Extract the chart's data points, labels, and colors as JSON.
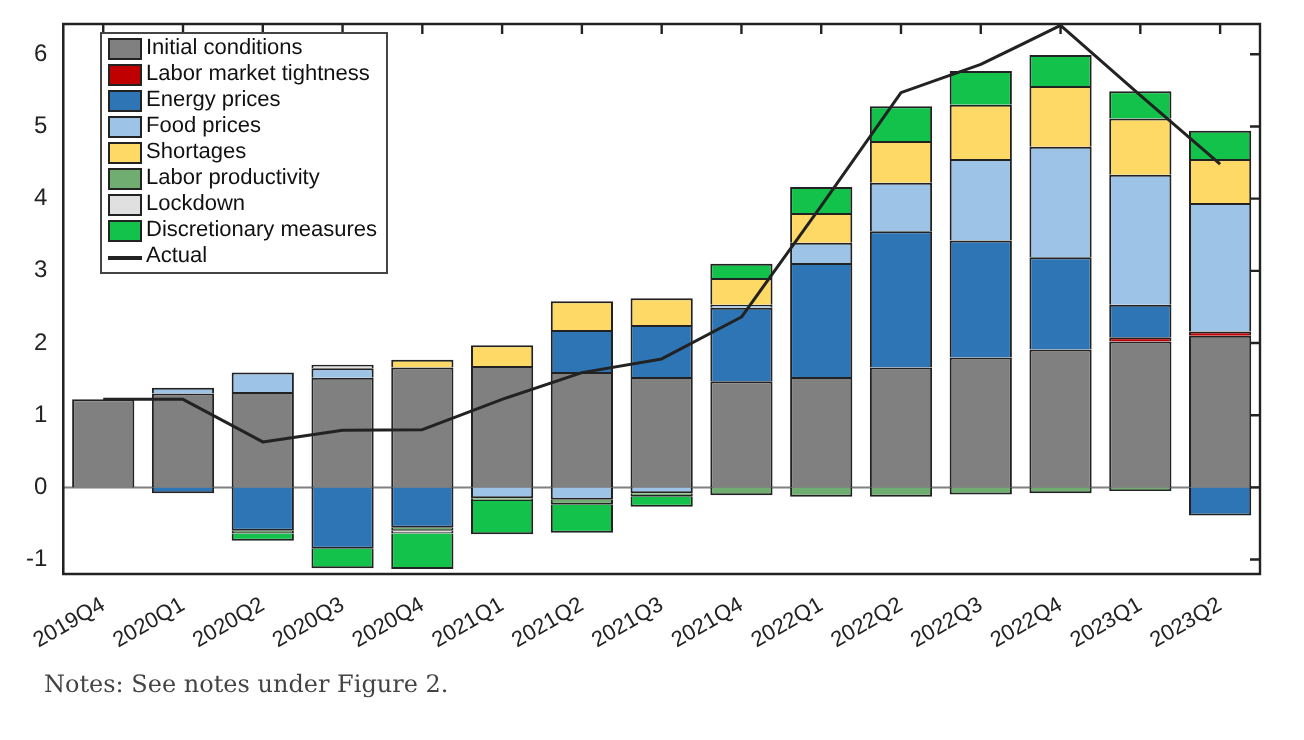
{
  "chart_data": {
    "type": "bar",
    "stacked": true,
    "legend": "top left",
    "grid": false,
    "marker": "none",
    "categories": [
      "2019Q4",
      "2020Q1",
      "2020Q2",
      "2020Q3",
      "2020Q4",
      "2021Q1",
      "2021Q2",
      "2021Q3",
      "2021Q4",
      "2022Q1",
      "2022Q2",
      "2022Q3",
      "2022Q4",
      "2023Q1",
      "2023Q2"
    ],
    "ylim": [
      -1.2,
      6.42
    ],
    "yticks": [
      -1,
      0,
      1,
      2,
      3,
      4,
      5,
      6
    ],
    "series": [
      {
        "name": "Initial conditions",
        "color": "#808080",
        "values": [
          1.22,
          1.3,
          1.32,
          1.52,
          1.66,
          1.68,
          1.6,
          1.53,
          1.47,
          1.53,
          1.66,
          1.8,
          1.91,
          2.02,
          2.1
        ]
      },
      {
        "name": "Labor market tightness",
        "color": "#c00000",
        "values": [
          null,
          null,
          null,
          null,
          null,
          null,
          null,
          null,
          null,
          null,
          null,
          null,
          null,
          0.06,
          0.06
        ]
      },
      {
        "name": "Energy prices",
        "color": "#2e75b6",
        "values": [
          null,
          -0.08,
          -0.6,
          -0.85,
          -0.56,
          null,
          0.58,
          0.72,
          1.02,
          1.58,
          1.89,
          1.62,
          1.28,
          0.45,
          -0.39
        ]
      },
      {
        "name": "Food prices",
        "color": "#9dc3e6",
        "values": [
          null,
          0.08,
          0.27,
          0.13,
          null,
          -0.15,
          -0.17,
          -0.08,
          0.04,
          0.28,
          0.67,
          1.13,
          1.53,
          1.8,
          1.78
        ]
      },
      {
        "name": "Shortages",
        "color": "#ffd966",
        "values": [
          null,
          null,
          null,
          null,
          0.11,
          0.29,
          0.4,
          0.37,
          0.37,
          0.41,
          0.58,
          0.75,
          0.84,
          0.78,
          0.61
        ]
      },
      {
        "name": "Labor productivity",
        "color": "#70ad70",
        "values": [
          null,
          null,
          -0.04,
          null,
          -0.04,
          -0.04,
          -0.07,
          -0.05,
          -0.11,
          -0.13,
          -0.13,
          -0.1,
          -0.08,
          -0.05,
          null
        ]
      },
      {
        "name": "Lockdown",
        "color": "#e0e0e0",
        "values": [
          null,
          null,
          null,
          0.05,
          -0.04,
          null,
          null,
          null,
          null,
          null,
          null,
          null,
          null,
          null,
          null
        ]
      },
      {
        "name": "Discretionary measures",
        "color": "#13c24a",
        "values": [
          null,
          null,
          -0.1,
          -0.27,
          -0.49,
          -0.46,
          -0.39,
          -0.14,
          0.2,
          0.36,
          0.48,
          0.47,
          0.43,
          0.38,
          0.39
        ]
      },
      {
        "name": "Actual",
        "type": "line",
        "color": "#222222",
        "values": [
          1.22,
          1.22,
          0.63,
          0.79,
          0.8,
          1.22,
          1.59,
          1.78,
          2.36,
          3.9,
          5.47,
          5.86,
          6.4,
          5.43,
          4.48
        ]
      }
    ],
    "ref_lines": [
      {
        "axis": "y",
        "value": 0,
        "color": "#808080"
      }
    ],
    "annotations": [
      "Notes: See notes under Figure 2."
    ]
  }
}
